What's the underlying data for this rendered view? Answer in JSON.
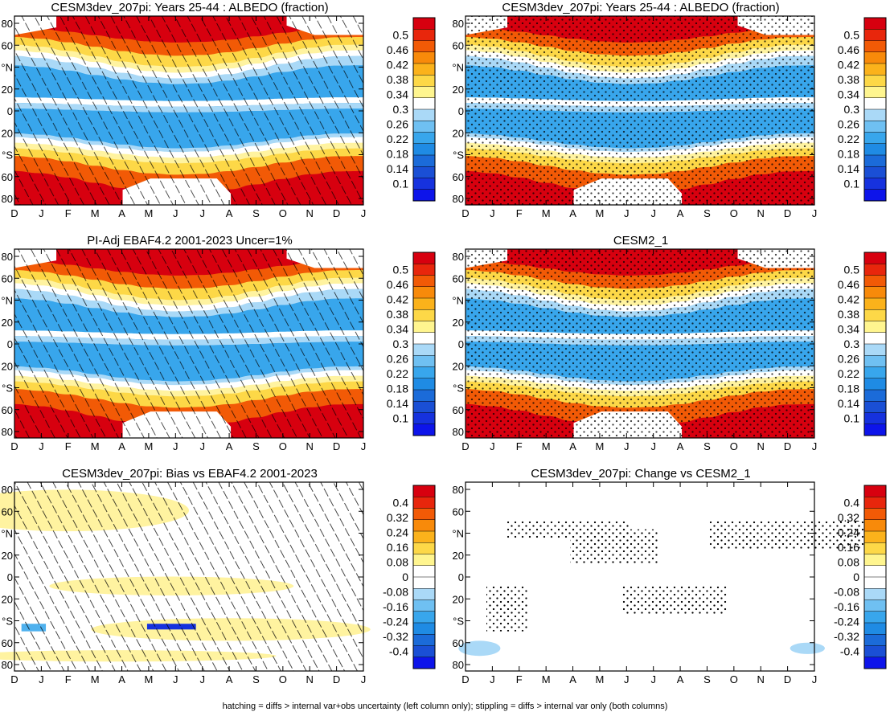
{
  "figure": {
    "footnote": "hatching = diffs > internal var+obs uncertainty (left column only); stippling = diffs > internal var only (both columns)",
    "month_labels": [
      "D",
      "J",
      "F",
      "M",
      "A",
      "M",
      "J",
      "J",
      "A",
      "S",
      "O",
      "N",
      "D",
      "J"
    ],
    "lat_labels": [
      "80",
      "60",
      "°N",
      "20",
      "0",
      "20",
      "°S",
      "60",
      "80"
    ],
    "colorbar_abs": {
      "labels": [
        "0.5",
        "0.46",
        "0.42",
        "0.38",
        "0.34",
        "0.3",
        "0.26",
        "0.22",
        "0.18",
        "0.14",
        "0.1"
      ],
      "colors": [
        "#d7000f",
        "#e8260c",
        "#f25a06",
        "#f88a0a",
        "#fbb21b",
        "#fdd847",
        "#fff58f",
        "#ffffff",
        "#aad9f7",
        "#6fc0f2",
        "#38a6ec",
        "#1f8be4",
        "#1b6bd9",
        "#1a4fd5",
        "#1632de",
        "#0d14ea"
      ]
    },
    "colorbar_diff": {
      "labels": [
        "0.4",
        "0.32",
        "0.24",
        "0.16",
        "0.08",
        "0",
        "-0.08",
        "-0.16",
        "-0.24",
        "-0.32",
        "-0.4"
      ],
      "colors": [
        "#d7000f",
        "#e8260c",
        "#f25a06",
        "#f88a0a",
        "#fbb21b",
        "#fdd847",
        "#fff58f",
        "#ffffff",
        "#ffffff",
        "#aad9f7",
        "#6fc0f2",
        "#38a6ec",
        "#1f8be4",
        "#1b6bd9",
        "#1a4fd5",
        "#0d14ea"
      ]
    },
    "palette": {
      "polar_red": "#d7000f",
      "high_orange": "#f25a06",
      "yellow": "#fdd847",
      "pale_yellow": "#fff3a0",
      "white": "#ffffff",
      "light_blue": "#aad9f7",
      "blue": "#38a6ec",
      "mid_blue": "#4fb1ee",
      "dark_blue": "#1632de"
    }
  },
  "chart_data": [
    {
      "type": "heatmap",
      "title": "CESM3dev_207pi: Years 25-44 : ALBEDO (fraction)",
      "x": [
        "D",
        "J",
        "F",
        "M",
        "A",
        "M",
        "J",
        "J",
        "A",
        "S",
        "O",
        "N",
        "D",
        "J"
      ],
      "y": [
        "80",
        "60",
        "°N",
        "20",
        "0",
        "20",
        "°S",
        "60",
        "80"
      ],
      "value_range": [
        0.1,
        0.5
      ],
      "overlay": "hatching",
      "description_values": {
        "polar_max": 0.5,
        "tropics_min": 0.22,
        "equator": 0.3
      }
    },
    {
      "type": "heatmap",
      "title": "CESM3dev_207pi: Years 25-44 : ALBEDO (fraction)",
      "x": [
        "D",
        "J",
        "F",
        "M",
        "A",
        "M",
        "J",
        "J",
        "A",
        "S",
        "O",
        "N",
        "D",
        "J"
      ],
      "y": [
        "80",
        "60",
        "°N",
        "20",
        "0",
        "20",
        "°S",
        "60",
        "80"
      ],
      "value_range": [
        0.1,
        0.5
      ],
      "overlay": "stippling"
    },
    {
      "type": "heatmap",
      "title": "PI-Adj EBAF4.2 2001-2023 Uncer=1%",
      "x": [
        "D",
        "J",
        "F",
        "M",
        "A",
        "M",
        "J",
        "J",
        "A",
        "S",
        "O",
        "N",
        "D",
        "J"
      ],
      "y": [
        "80",
        "60",
        "°N",
        "20",
        "0",
        "20",
        "°S",
        "60",
        "80"
      ],
      "value_range": [
        0.1,
        0.5
      ],
      "overlay": "hatching"
    },
    {
      "type": "heatmap",
      "title": "CESM2_1",
      "x": [
        "D",
        "J",
        "F",
        "M",
        "A",
        "M",
        "J",
        "J",
        "A",
        "S",
        "O",
        "N",
        "D",
        "J"
      ],
      "y": [
        "80",
        "60",
        "°N",
        "20",
        "0",
        "20",
        "°S",
        "60",
        "80"
      ],
      "value_range": [
        0.1,
        0.5
      ],
      "overlay": "stippling"
    },
    {
      "type": "heatmap",
      "title": "CESM3dev_207pi: Bias vs EBAF4.2 2001-2023",
      "x": [
        "D",
        "J",
        "F",
        "M",
        "A",
        "M",
        "J",
        "J",
        "A",
        "S",
        "O",
        "N",
        "D",
        "J"
      ],
      "y": [
        "80",
        "60",
        "°N",
        "20",
        "0",
        "20",
        "°S",
        "60",
        "80"
      ],
      "value_range": [
        -0.4,
        0.4
      ],
      "overlay": "hatching"
    },
    {
      "type": "heatmap",
      "title": "CESM3dev_207pi: Change vs CESM2_1",
      "x": [
        "D",
        "J",
        "F",
        "M",
        "A",
        "M",
        "J",
        "J",
        "A",
        "S",
        "O",
        "N",
        "D",
        "J"
      ],
      "y": [
        "80",
        "60",
        "°N",
        "20",
        "0",
        "20",
        "°S",
        "60",
        "80"
      ],
      "value_range": [
        -0.4,
        0.4
      ],
      "overlay": "stippling"
    }
  ]
}
